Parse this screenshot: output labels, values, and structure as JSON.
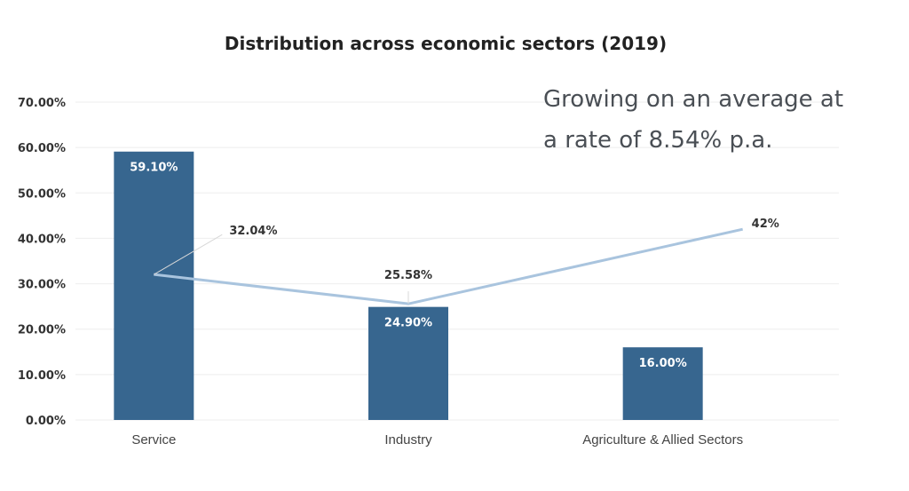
{
  "chart_data": {
    "type": "bar",
    "title": "Distribution across economic sectors (2019)",
    "categories": [
      "Service",
      "Industry",
      "Agriculture & Allied Sectors"
    ],
    "ylim": [
      0,
      70
    ],
    "yticks": [
      "0.00%",
      "10.00%",
      "20.00%",
      "30.00%",
      "40.00%",
      "50.00%",
      "60.00%",
      "70.00%"
    ],
    "grid": true,
    "series": [
      {
        "type": "bar",
        "values": [
          59.1,
          24.9,
          16.0
        ],
        "labels": [
          "59.10%",
          "24.90%",
          "16.00%"
        ],
        "color": "#37668f"
      },
      {
        "type": "line",
        "values": [
          32.04,
          25.58,
          42
        ],
        "labels": [
          "32.04%",
          "25.58%",
          "42%"
        ],
        "color": "#a9c4de"
      }
    ],
    "annotation": [
      "Growing on an average at",
      "a rate of 8.54% p.a."
    ]
  }
}
